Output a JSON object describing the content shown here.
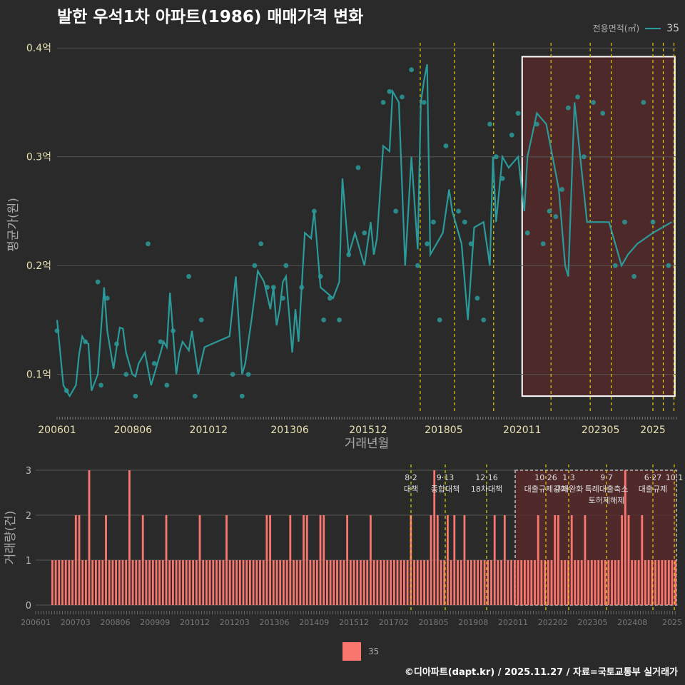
{
  "title": "발한 우석1차 아파트(1986) 매매가격 변화",
  "legend": {
    "title": "전용면적(㎡)",
    "series_label": "35",
    "bar_label": "35"
  },
  "footer": "©디아파트(dapt.kr) / 2025.11.27 / 자료=국토교통부 실거래가",
  "colors": {
    "line": "#2a9a9a",
    "bar": "#f8766d",
    "highlight": "#5a2a2a",
    "vline": "#e6d200"
  },
  "chart_data": [
    {
      "type": "line",
      "title": "발한 우석1차 아파트(1986) 매매가격 변화",
      "xlabel": "거래년월",
      "ylabel": "평균가(원)",
      "ylim": [
        0.065,
        0.41
      ],
      "xlim": [
        2006.0,
        2025.75
      ],
      "yticks": [
        0.1,
        0.2,
        0.3,
        0.4
      ],
      "ytick_labels": [
        "0.1억",
        "0.2억",
        "0.3억",
        "0.4억"
      ],
      "xticks": [
        2006.0,
        2008.42,
        2010.83,
        2013.42,
        2015.92,
        2018.33,
        2020.83,
        2023.33,
        2025.0
      ],
      "xtick_labels": [
        "200601",
        "200806",
        "201012",
        "201306",
        "201512",
        "201805",
        "202011",
        "202305",
        "2025"
      ],
      "highlight_range": [
        2020.83,
        2025.7
      ],
      "vlines": [
        2017.58,
        2018.67,
        2019.92,
        2021.75,
        2023.0,
        2023.67,
        2025.0,
        2025.33,
        2025.67
      ],
      "series": [
        {
          "name": "35",
          "x": [
            2006.0,
            2006.2,
            2006.4,
            2006.6,
            2006.7,
            2006.8,
            2006.9,
            2007.0,
            2007.1,
            2007.3,
            2007.5,
            2007.6,
            2007.8,
            2007.9,
            2008.0,
            2008.1,
            2008.2,
            2008.4,
            2008.5,
            2008.6,
            2008.8,
            2009.0,
            2009.2,
            2009.4,
            2009.5,
            2009.6,
            2009.8,
            2009.9,
            2010.0,
            2010.2,
            2010.3,
            2010.5,
            2010.7,
            2011.1,
            2011.5,
            2011.7,
            2011.9,
            2012.0,
            2012.1,
            2012.2,
            2012.4,
            2012.6,
            2012.8,
            2012.9,
            2013.0,
            2013.1,
            2013.2,
            2013.3,
            2013.5,
            2013.6,
            2013.7,
            2013.9,
            2014.1,
            2014.2,
            2014.4,
            2014.8,
            2015.0,
            2015.1,
            2015.3,
            2015.5,
            2015.6,
            2015.8,
            2016.0,
            2016.1,
            2016.2,
            2016.4,
            2016.6,
            2016.7,
            2016.9,
            2017.1,
            2017.3,
            2017.5,
            2017.6,
            2017.7,
            2017.8,
            2017.9,
            2018.1,
            2018.3,
            2018.5,
            2018.6,
            2018.7,
            2018.9,
            2019.1,
            2019.3,
            2019.6,
            2019.8,
            2019.9,
            2020.0,
            2020.1,
            2020.2,
            2020.4,
            2020.7,
            2020.9,
            2021.0,
            2021.3,
            2021.6,
            2021.8,
            2022.0,
            2022.2,
            2022.3,
            2022.5,
            2022.9,
            2023.3,
            2023.6,
            2024.0,
            2024.2,
            2024.5,
            2025.0,
            2025.6
          ],
          "values": [
            0.15,
            0.09,
            0.08,
            0.09,
            0.118,
            0.135,
            0.13,
            0.128,
            0.085,
            0.1,
            0.18,
            0.14,
            0.105,
            0.125,
            0.143,
            0.142,
            0.12,
            0.1,
            0.098,
            0.11,
            0.12,
            0.09,
            0.11,
            0.13,
            0.125,
            0.175,
            0.1,
            0.12,
            0.13,
            0.122,
            0.14,
            0.1,
            0.125,
            0.13,
            0.135,
            0.19,
            0.1,
            0.11,
            0.13,
            0.15,
            0.195,
            0.185,
            0.16,
            0.18,
            0.145,
            0.16,
            0.185,
            0.19,
            0.12,
            0.16,
            0.13,
            0.23,
            0.225,
            0.25,
            0.18,
            0.17,
            0.185,
            0.28,
            0.21,
            0.23,
            0.22,
            0.2,
            0.24,
            0.21,
            0.225,
            0.31,
            0.305,
            0.36,
            0.35,
            0.2,
            0.3,
            0.215,
            0.35,
            0.37,
            0.385,
            0.21,
            0.22,
            0.23,
            0.27,
            0.25,
            0.24,
            0.22,
            0.15,
            0.235,
            0.24,
            0.2,
            0.3,
            0.24,
            0.27,
            0.3,
            0.29,
            0.3,
            0.25,
            0.3,
            0.34,
            0.33,
            0.3,
            0.27,
            0.2,
            0.19,
            0.35,
            0.24,
            0.24,
            0.24,
            0.2,
            0.21,
            0.22,
            0.23,
            0.24
          ],
          "scatter_x": [
            2006.0,
            2006.3,
            2006.9,
            2007.3,
            2007.4,
            2007.6,
            2007.9,
            2008.2,
            2008.5,
            2008.9,
            2009.1,
            2009.3,
            2009.5,
            2009.7,
            2010.2,
            2010.4,
            2010.6,
            2011.6,
            2011.9,
            2012.1,
            2012.3,
            2012.5,
            2012.7,
            2012.9,
            2013.2,
            2013.3,
            2013.8,
            2014.2,
            2014.4,
            2014.5,
            2014.7,
            2015.0,
            2015.3,
            2015.6,
            2015.8,
            2016.4,
            2016.6,
            2016.8,
            2017.0,
            2017.3,
            2017.5,
            2017.7,
            2017.8,
            2018.0,
            2018.2,
            2018.4,
            2018.8,
            2019.0,
            2019.2,
            2019.4,
            2019.6,
            2019.8,
            2020.0,
            2020.2,
            2020.5,
            2020.7,
            2021.0,
            2021.3,
            2021.5,
            2021.7,
            2021.9,
            2022.1,
            2022.3,
            2022.6,
            2022.8,
            2023.1,
            2023.4,
            2023.8,
            2024.1,
            2024.4,
            2024.7,
            2025.0,
            2025.5
          ],
          "scatter_y": [
            0.14,
            0.085,
            0.13,
            0.185,
            0.09,
            0.17,
            0.128,
            0.1,
            0.08,
            0.22,
            0.11,
            0.13,
            0.09,
            0.14,
            0.19,
            0.08,
            0.15,
            0.1,
            0.08,
            0.1,
            0.2,
            0.22,
            0.18,
            0.18,
            0.17,
            0.2,
            0.18,
            0.25,
            0.19,
            0.15,
            0.17,
            0.15,
            0.21,
            0.29,
            0.23,
            0.35,
            0.36,
            0.25,
            0.355,
            0.38,
            0.2,
            0.35,
            0.22,
            0.24,
            0.15,
            0.31,
            0.25,
            0.24,
            0.22,
            0.17,
            0.15,
            0.33,
            0.3,
            0.28,
            0.32,
            0.34,
            0.23,
            0.33,
            0.22,
            0.25,
            0.245,
            0.27,
            0.345,
            0.355,
            0.3,
            0.35,
            0.34,
            0.2,
            0.24,
            0.19,
            0.35,
            0.24,
            0.2
          ]
        }
      ]
    },
    {
      "type": "bar",
      "xlabel": "",
      "ylabel": "거래량(건)",
      "ylim": [
        0,
        3
      ],
      "yticks": [
        0,
        1,
        2,
        3
      ],
      "xtick_labels": [
        "200601",
        "200703",
        "200806",
        "200909",
        "201012",
        "201203",
        "201306",
        "201409",
        "201512",
        "201702",
        "201805",
        "201908",
        "202011",
        "202202",
        "202305",
        "202408",
        "2025"
      ],
      "annotations": [
        {
          "x": 2017.58,
          "label": "8·2 대책"
        },
        {
          "x": 2018.67,
          "label": "9·13 종합대책"
        },
        {
          "x": 2019.92,
          "label": "12·16 18차대책"
        },
        {
          "x": 2021.75,
          "label": "10·26 대출규제강화"
        },
        {
          "x": 2023.0,
          "label": "1·3 규제완화"
        },
        {
          "x": 2023.67,
          "label": "9·7 특례대출축소 토허제해제"
        },
        {
          "x": 2025.33,
          "label": "6·27 대출규제"
        },
        {
          "x": 2025.67,
          "label": "10·1"
        }
      ],
      "values": [
        1,
        1,
        1,
        1,
        1,
        1,
        1,
        2,
        2,
        1,
        1,
        3,
        1,
        1,
        1,
        1,
        2,
        1,
        1,
        1,
        1,
        1,
        1,
        3,
        1,
        1,
        1,
        2,
        1,
        1,
        1,
        1,
        1,
        1,
        2,
        1,
        1,
        1,
        1,
        1,
        1,
        1,
        1,
        1,
        2,
        1,
        1,
        1,
        1,
        1,
        1,
        1,
        2,
        1,
        1,
        1,
        1,
        1,
        1,
        1,
        1,
        1,
        1,
        1,
        2,
        2,
        1,
        1,
        1,
        1,
        1,
        2,
        1,
        1,
        1,
        2,
        2,
        1,
        1,
        1,
        2,
        2,
        1,
        1,
        1,
        1,
        1,
        1,
        2,
        1,
        1,
        1,
        1,
        1,
        1,
        2,
        1,
        1,
        1,
        1,
        1,
        1,
        1,
        1,
        1,
        1,
        1,
        2,
        1,
        1,
        1,
        1,
        1,
        2,
        3,
        2,
        1,
        1,
        2,
        1,
        2,
        1,
        1,
        2,
        1,
        1,
        1,
        1,
        1,
        1,
        1,
        1,
        2,
        1,
        1,
        2,
        1,
        1,
        1,
        1,
        1,
        1,
        1,
        1,
        1,
        2,
        1,
        1,
        1,
        1,
        2,
        2,
        1,
        1,
        1,
        2,
        1,
        1,
        1,
        2,
        1,
        1,
        1,
        1,
        1,
        1,
        1,
        1,
        1,
        1,
        2,
        3,
        2,
        1,
        1,
        1,
        2,
        1,
        1,
        1,
        1,
        1,
        1,
        1,
        1,
        1,
        1
      ]
    }
  ]
}
